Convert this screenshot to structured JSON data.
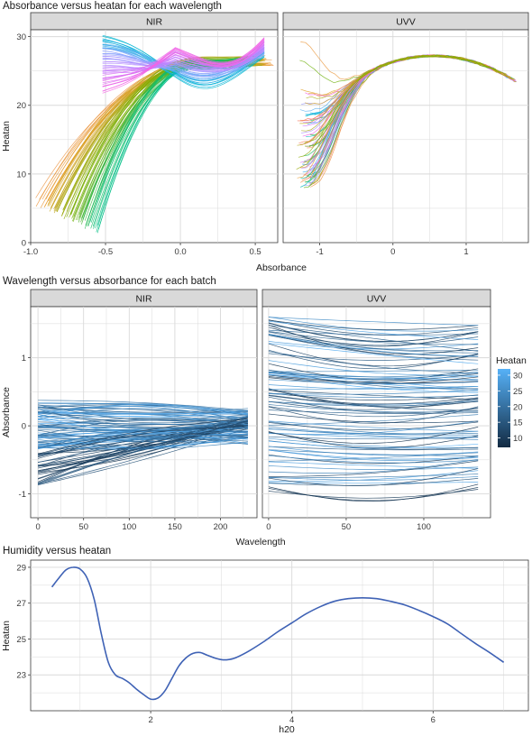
{
  "colors": {
    "panel_background": "#ffffff",
    "grid": "#d9d9d9",
    "panel_border": "#3a3a3a",
    "strip_fill": "#d9d9d9",
    "axis_text": "#3a3a3a",
    "series_line": "#3f62b5",
    "heatan_low": "#132b43",
    "heatan_high": "#56b1f7",
    "rainbow": [
      "#f8766d",
      "#e6a12f",
      "#7cae00",
      "#00bf7d",
      "#00b4d8",
      "#8fa8ff",
      "#c77cff",
      "#f564e3"
    ]
  },
  "chart_data": [
    {
      "type": "line",
      "title": "Absorbance versus heatan for each wavelength",
      "xlabel": "Absorbance",
      "ylabel": "Heatan",
      "grid": true,
      "legend": "none",
      "series_description": "many spaghetti lines, one per wavelength, coloured by wavelength",
      "facets": [
        {
          "name": "NIR",
          "xlim": [
            -1.0,
            0.65
          ],
          "ylim": [
            0,
            31
          ],
          "x_ticks": [
            "-1.0",
            "-0.5",
            "0.0",
            "0.5"
          ],
          "x_tick_values": [
            -1.0,
            -0.5,
            0.0,
            0.5
          ],
          "y_ticks": [
            "0",
            "10",
            "20",
            "30"
          ],
          "y_tick_values": [
            0,
            10,
            20,
            30
          ]
        },
        {
          "name": "UVV",
          "xlim": [
            -1.5,
            1.85
          ],
          "ylim": [
            0,
            31
          ],
          "x_ticks": [
            "-1",
            "0",
            "1"
          ],
          "x_tick_values": [
            -1,
            0,
            1
          ],
          "y_ticks": [],
          "y_tick_values": []
        }
      ]
    },
    {
      "type": "line",
      "title": "Wavelength versus absorbance for each batch",
      "xlabel": "Wavelength",
      "ylabel": "Absorbance",
      "grid": true,
      "legend": "right",
      "legend_title": "Heatan",
      "legend_ticks": [
        "30",
        "25",
        "20",
        "15",
        "10"
      ],
      "legend_tick_values": [
        30,
        25,
        20,
        15,
        10
      ],
      "color_range": [
        7,
        32
      ],
      "facets": [
        {
          "name": "NIR",
          "xlim": [
            -8,
            240
          ],
          "ylim": [
            -1.35,
            1.75
          ],
          "x_ticks": [
            "0",
            "50",
            "100",
            "150",
            "200"
          ],
          "x_tick_values": [
            0,
            50,
            100,
            150,
            200
          ],
          "y_ticks": [
            "1",
            "0",
            "-1"
          ],
          "y_tick_values": [
            1,
            0,
            -1
          ]
        },
        {
          "name": "UVV",
          "xlim": [
            -4,
            143
          ],
          "ylim": [
            -1.35,
            1.75
          ],
          "x_ticks": [
            "0",
            "50",
            "100"
          ],
          "x_tick_values": [
            0,
            50,
            100
          ],
          "y_ticks": [],
          "y_tick_values": []
        }
      ]
    },
    {
      "type": "line",
      "title": "Humidity versus heatan",
      "xlabel": "h20",
      "ylabel": "Heatan",
      "grid": true,
      "legend": "none",
      "xlim": [
        0.3,
        7.35
      ],
      "ylim": [
        21.0,
        29.4
      ],
      "x_ticks": [
        "2",
        "4",
        "6"
      ],
      "x_tick_values": [
        2,
        4,
        6
      ],
      "y_ticks": [
        "29",
        "27",
        "25",
        "23"
      ],
      "y_tick_values": [
        29,
        27,
        25,
        23
      ],
      "series": [
        {
          "x": [
            0.6,
            0.7,
            0.8,
            0.9,
            1.0,
            1.1,
            1.2,
            1.3,
            1.4,
            1.5,
            1.6,
            1.7,
            1.8,
            1.9,
            2.0,
            2.1,
            2.2,
            2.3,
            2.4,
            2.5,
            2.6,
            2.7,
            2.8,
            2.9,
            3.0,
            3.1,
            3.2,
            3.4,
            3.6,
            3.8,
            4.0,
            4.2,
            4.4,
            4.6,
            4.8,
            5.0,
            5.2,
            5.4,
            5.6,
            5.8,
            6.0,
            6.2,
            6.4,
            6.6,
            6.8,
            7.0
          ],
          "y": [
            27.9,
            28.4,
            28.85,
            29.0,
            28.9,
            28.4,
            27.2,
            25.3,
            23.7,
            23.0,
            22.8,
            22.55,
            22.2,
            21.9,
            21.65,
            21.7,
            22.1,
            22.8,
            23.5,
            23.95,
            24.2,
            24.25,
            24.1,
            23.95,
            23.85,
            23.85,
            23.95,
            24.35,
            24.85,
            25.4,
            25.9,
            26.4,
            26.8,
            27.1,
            27.25,
            27.3,
            27.25,
            27.1,
            26.9,
            26.6,
            26.25,
            25.85,
            25.3,
            24.75,
            24.25,
            23.7
          ]
        }
      ]
    }
  ]
}
